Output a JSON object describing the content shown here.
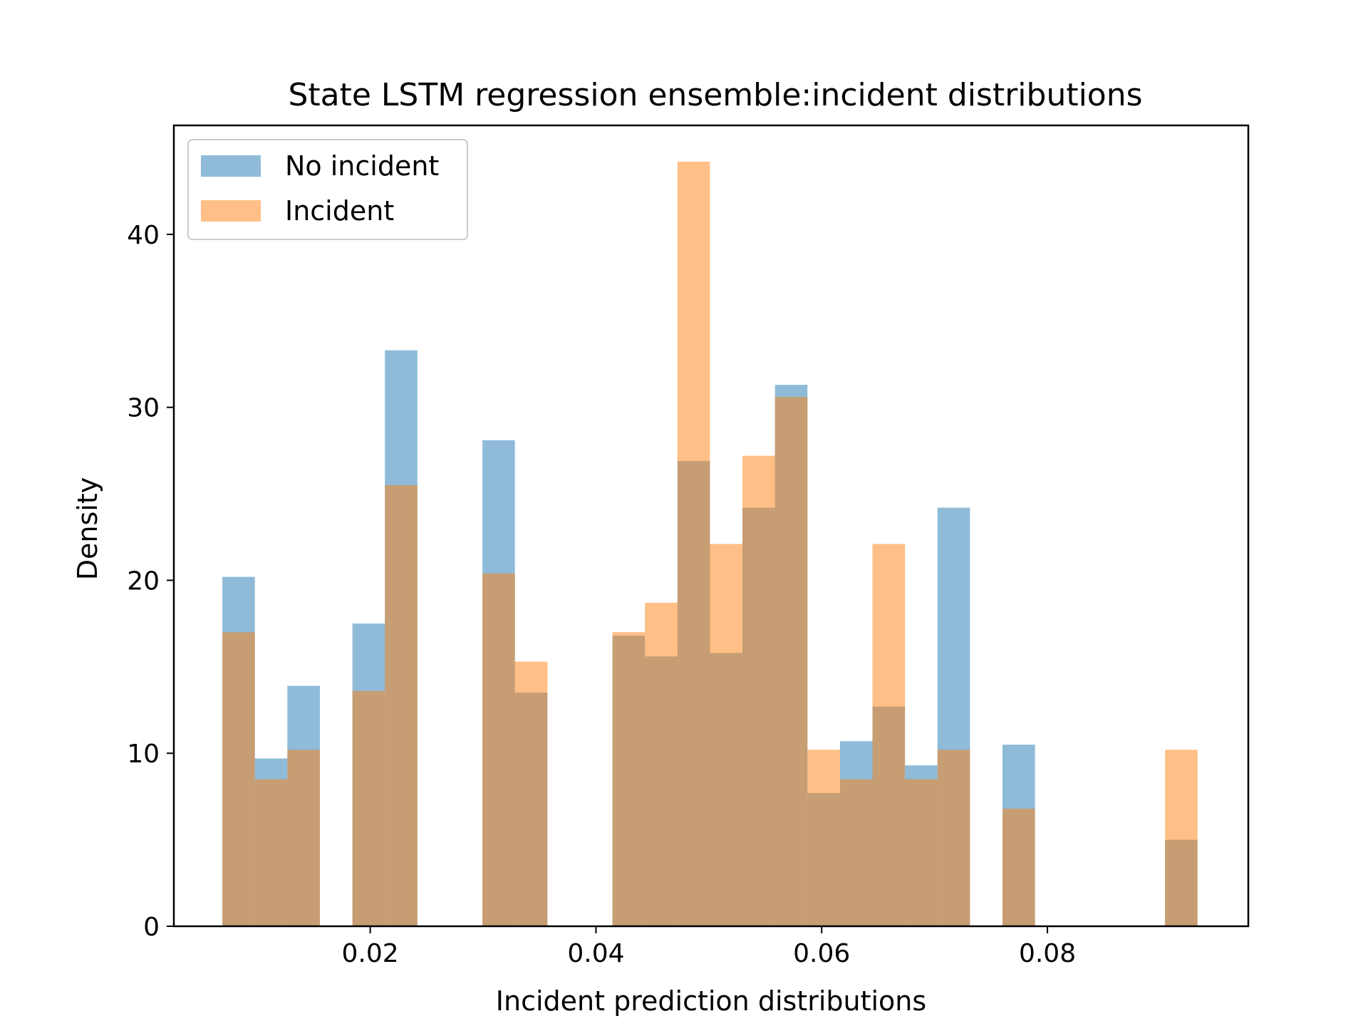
{
  "chart_data": {
    "type": "bar",
    "subtype": "overlapping-histogram",
    "title": "State LSTM regression ensemble:incident distributions",
    "xlabel": "Incident prediction distributions",
    "ylabel": "Density",
    "xlim": [
      0.0026,
      0.0978
    ],
    "ylim": [
      0,
      46.3
    ],
    "xticks": [
      0.02,
      0.04,
      0.06,
      0.08
    ],
    "xtick_labels": [
      "0.02",
      "0.04",
      "0.06",
      "0.08"
    ],
    "yticks": [
      0,
      10,
      20,
      30,
      40
    ],
    "ytick_labels": [
      "0",
      "10",
      "20",
      "30",
      "40"
    ],
    "bin_edges": [
      0.0069,
      0.00978,
      0.01266,
      0.01554,
      0.01842,
      0.0213,
      0.02418,
      0.02706,
      0.02994,
      0.03282,
      0.0357,
      0.03858,
      0.04146,
      0.04434,
      0.04722,
      0.0501,
      0.05298,
      0.05586,
      0.05874,
      0.06162,
      0.0645,
      0.06738,
      0.07026,
      0.07314,
      0.07602,
      0.0789,
      0.08178,
      0.08466,
      0.08754,
      0.09042,
      0.0933
    ],
    "series": [
      {
        "name": "No incident",
        "color": "#1f77b4",
        "alpha": 0.5,
        "values": [
          20.2,
          9.7,
          13.9,
          0,
          17.5,
          33.3,
          0,
          0,
          28.1,
          13.5,
          0,
          0,
          16.8,
          15.6,
          26.9,
          15.8,
          24.2,
          31.3,
          7.7,
          10.7,
          12.7,
          9.3,
          24.2,
          0,
          10.5,
          0,
          0,
          0,
          0,
          5.0
        ]
      },
      {
        "name": "Incident",
        "color": "#ff7f0e",
        "alpha": 0.5,
        "values": [
          17.0,
          8.5,
          10.2,
          0,
          13.6,
          25.5,
          0,
          0,
          20.4,
          15.3,
          0,
          0,
          17.0,
          18.7,
          44.2,
          22.1,
          27.2,
          30.6,
          10.2,
          8.5,
          22.1,
          8.5,
          10.2,
          0,
          6.8,
          0,
          0,
          0,
          0,
          10.2
        ]
      }
    ],
    "legend": {
      "position": "upper left",
      "entries": [
        "No incident",
        "Incident"
      ]
    },
    "grid": false
  }
}
